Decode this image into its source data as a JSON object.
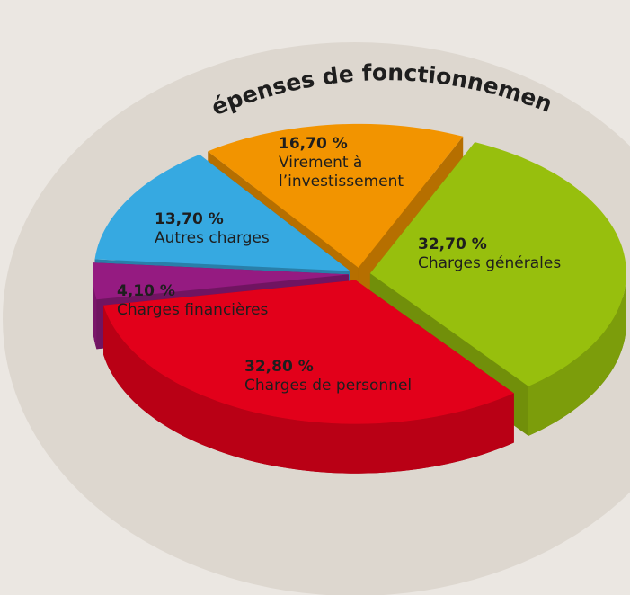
{
  "chart_data": {
    "type": "pie",
    "title": "Dépenses de fonctionnement",
    "categories": [
      "Virement à l’investissement",
      "Charges générales",
      "Charges de personnel",
      "Charges financières",
      "Autres charges"
    ],
    "values": [
      16.7,
      32.7,
      32.8,
      4.1,
      13.7
    ],
    "value_labels": [
      "16,70 %",
      "32,70 %",
      "32,80 %",
      "4,10 %",
      "13,70 %"
    ],
    "colors": [
      "#f29400",
      "#97bf0d",
      "#e2001a",
      "#951b81",
      "#36a9e1"
    ]
  }
}
